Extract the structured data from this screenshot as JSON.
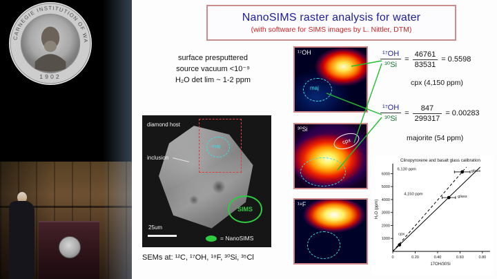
{
  "photo": {
    "seal_rim": "CARNEGIE INSTITUTION OF WASHINGTON",
    "seal_year": "1902"
  },
  "slide": {
    "title": "NanoSIMS raster analysis for water",
    "subtitle": "(with software for SIMS images by L. Nittler, DTM)",
    "prep_lines": [
      "surface presputtered",
      "source vacuum <10⁻⁹",
      "H₂O det lim ~ 1-2 ppm"
    ],
    "sem": {
      "label_host": "diamond host",
      "label_inclusion": "inclusion",
      "label_maj": "maj",
      "label_sims": "SIMS",
      "scale": "25um",
      "legend": "= NanoSIMS"
    },
    "sems_line": "SEMs at: ¹²C, ¹⁷OH, ¹⁹F, ³⁰Si, ³⁵Cl",
    "sims_images": [
      {
        "label": "¹⁷OH",
        "overlay": "maj"
      },
      {
        "label": "³⁰Si",
        "overlay": "cpx"
      },
      {
        "label": "¹⁹F",
        "overlay": ""
      }
    ],
    "eq1": {
      "num1": "¹⁷OH",
      "den1": "³⁰Si",
      "eq": "=",
      "num2": "46761",
      "den2": "83531",
      "result": "= 0.5598",
      "label": "cpx (4,150 ppm)"
    },
    "eq2": {
      "num1": "¹⁷OH",
      "den1": "³⁰Si",
      "eq": "=",
      "num2": "847",
      "den2": "299317",
      "result": "= 0.00283",
      "label": "majorite (54 ppm)"
    }
  },
  "colors": {
    "title_blue": "#1b1b9e",
    "subtitle_red": "#cc2222",
    "box_border_pink": "#c98b8b",
    "connector_green": "#1fbf2f",
    "overlay_cyan": "#39e2e2",
    "sims_green": "#2ecc40"
  },
  "chart_data": {
    "type": "scatter",
    "title": "Clinopyroxene and basalt glass calibration",
    "xlabel": "17OH/30Si",
    "ylabel": "H₂O (ppm)",
    "xlim": [
      0,
      0.85
    ],
    "ylim": [
      0,
      6500
    ],
    "xticks": [
      0,
      0.2,
      0.4,
      0.6,
      0.8
    ],
    "xtick_labels": [
      "0",
      "0.20",
      "0.40",
      "0.60",
      "0.80"
    ],
    "yticks": [
      1000,
      2000,
      3000,
      4000,
      5000,
      6000
    ],
    "grid": false,
    "legend_position": "none",
    "points": [
      {
        "label": "glass",
        "x": 0.62,
        "y": 6130,
        "xerr": 0.07
      },
      {
        "label": "glass",
        "x": 0.5,
        "y": 4150,
        "xerr": 0.06
      },
      {
        "label": "cpx",
        "x": 0.06,
        "y": 500,
        "xerr": 0
      }
    ],
    "lines": [
      {
        "style": "dashed",
        "x": [
          0,
          0.657
        ],
        "y": [
          0,
          6500
        ]
      },
      {
        "style": "solid",
        "x": [
          0,
          0.78
        ],
        "y": [
          0,
          6500
        ]
      }
    ],
    "annotations": [
      {
        "text": "6,130 ppm",
        "x": 0.04,
        "y": 6250
      },
      {
        "text": "glass",
        "x": 0.7,
        "y": 6130
      },
      {
        "text": "4,150 ppm",
        "x": 0.1,
        "y": 4350
      },
      {
        "text": "glass",
        "x": 0.58,
        "y": 4150
      },
      {
        "text": "cpx",
        "x": 0.05,
        "y": 1250
      }
    ]
  }
}
